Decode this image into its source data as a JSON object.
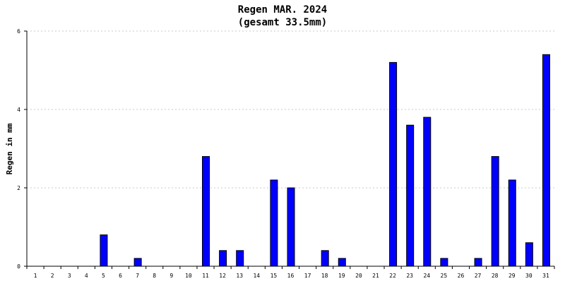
{
  "chart_data": {
    "type": "bar",
    "title": "Regen MAR. 2024",
    "subtitle": "(gesamt 33.5mm)",
    "xlabel": "",
    "ylabel": "Regen in mm",
    "ylim": [
      0,
      6
    ],
    "yticks": [
      "0",
      "2",
      "4",
      "6"
    ],
    "grid": true,
    "bar_color": "#0000ff",
    "categories": [
      "1",
      "2",
      "3",
      "4",
      "5",
      "6",
      "7",
      "8",
      "9",
      "10",
      "11",
      "12",
      "13",
      "14",
      "15",
      "16",
      "17",
      "18",
      "19",
      "20",
      "21",
      "22",
      "23",
      "24",
      "25",
      "26",
      "27",
      "28",
      "29",
      "30",
      "31"
    ],
    "values": [
      0,
      0,
      0,
      0,
      0.8,
      0,
      0.2,
      0,
      0,
      0,
      2.8,
      0.4,
      0.4,
      0,
      2.2,
      2.0,
      0,
      0.4,
      0.2,
      0,
      0,
      5.2,
      3.6,
      3.8,
      0.2,
      0,
      0.2,
      2.8,
      2.2,
      0.6,
      5.4
    ]
  }
}
